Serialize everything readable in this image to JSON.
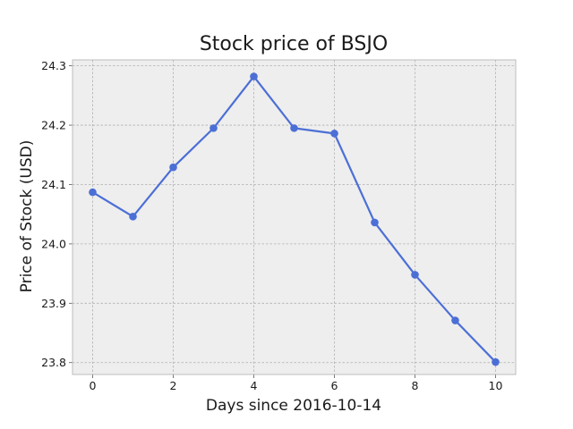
{
  "chart_data": {
    "type": "line",
    "title": "Stock price of BSJO",
    "xlabel": "Days since 2016-10-14",
    "ylabel": "Price of Stock (USD)",
    "x": [
      0,
      1,
      2,
      3,
      4,
      5,
      6,
      7,
      8,
      9,
      10
    ],
    "series": [
      {
        "values": [
          24.087,
          24.046,
          24.129,
          24.195,
          24.282,
          24.195,
          24.186,
          24.036,
          23.948,
          23.871,
          23.801
        ]
      }
    ],
    "xlim": [
      -0.5,
      10.5
    ],
    "ylim": [
      23.78,
      24.31
    ],
    "xticks": [
      0,
      2,
      4,
      6,
      8,
      10
    ],
    "yticks": [
      23.8,
      23.9,
      24.0,
      24.1,
      24.2,
      24.3
    ],
    "grid": true,
    "colors": {
      "line": "#4c6fd6",
      "plot_background": "#eeeeee",
      "grid": "#b0b0b0",
      "frame": "#bcbcbc"
    }
  }
}
